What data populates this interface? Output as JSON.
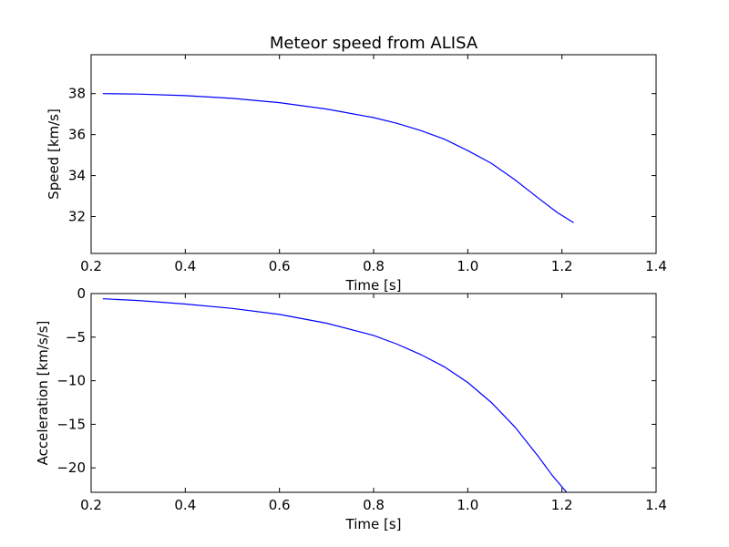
{
  "chart_data": [
    {
      "type": "line",
      "title": "Meteor speed from  ALISA",
      "xlabel": "Time [s]",
      "ylabel": "Speed [km/s]",
      "xlim": [
        0.2,
        1.4
      ],
      "ylim": [
        30.2,
        39.9
      ],
      "xticks": [
        0.2,
        0.4,
        0.6,
        0.8,
        1.0,
        1.2,
        1.4
      ],
      "xtick_labels": [
        "0.2",
        "0.4",
        "0.6",
        "0.8",
        "1.0",
        "1.2",
        "1.4"
      ],
      "yticks": [
        32,
        34,
        36,
        38
      ],
      "ytick_labels": [
        "32",
        "34",
        "36",
        "38"
      ],
      "grid": false,
      "color": "#0000ff",
      "series": [
        {
          "x": [
            0.225,
            0.3,
            0.4,
            0.5,
            0.6,
            0.7,
            0.8,
            0.85,
            0.9,
            0.95,
            1.0,
            1.05,
            1.1,
            1.15,
            1.19,
            1.225
          ],
          "y": [
            38.0,
            37.98,
            37.9,
            37.77,
            37.56,
            37.25,
            36.83,
            36.55,
            36.2,
            35.78,
            35.22,
            34.6,
            33.8,
            32.9,
            32.2,
            31.7
          ]
        }
      ]
    },
    {
      "type": "line",
      "title": "",
      "xlabel": "Time [s]",
      "ylabel": "Acceleration [km/s/s]",
      "xlim": [
        0.2,
        1.4
      ],
      "ylim": [
        -22.8,
        0
      ],
      "xticks": [
        0.2,
        0.4,
        0.6,
        0.8,
        1.0,
        1.2,
        1.4
      ],
      "xtick_labels": [
        "0.2",
        "0.4",
        "0.6",
        "0.8",
        "1.0",
        "1.2",
        "1.4"
      ],
      "yticks": [
        0,
        -5,
        -10,
        -15,
        -20
      ],
      "ytick_labels": [
        "0",
        "−5",
        "−10",
        "−15",
        "−20"
      ],
      "grid": false,
      "color": "#0000ff",
      "series": [
        {
          "x": [
            0.225,
            0.3,
            0.4,
            0.5,
            0.6,
            0.7,
            0.8,
            0.85,
            0.9,
            0.95,
            1.0,
            1.05,
            1.1,
            1.15,
            1.18,
            1.21
          ],
          "y": [
            -0.6,
            -0.8,
            -1.2,
            -1.7,
            -2.4,
            -3.4,
            -4.8,
            -5.8,
            -7.0,
            -8.4,
            -10.2,
            -12.5,
            -15.3,
            -18.7,
            -20.9,
            -22.8
          ]
        }
      ]
    }
  ]
}
